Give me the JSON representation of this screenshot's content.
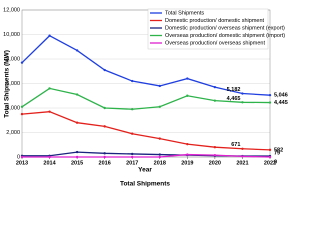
{
  "chart_data": {
    "type": "line",
    "xlabel": "Year",
    "ylabel": "Total Shipments (MW)",
    "title": "Total Shipments",
    "x": [
      2013,
      2014,
      2015,
      2016,
      2017,
      2018,
      2019,
      2020,
      2021,
      2022
    ],
    "xlim": [
      2013,
      2022
    ],
    "xticks": [
      2013,
      2014,
      2015,
      2016,
      2017,
      2018,
      2019,
      2020,
      2021,
      2022
    ],
    "ylim": [
      0,
      12000
    ],
    "yticks": [
      0,
      {
        "value": 2000,
        "label": "2,000"
      },
      {
        "value": 4000,
        "label": "4,000"
      },
      {
        "value": 6000,
        "label": "6,000"
      },
      {
        "value": 8000,
        "label": "8,000"
      },
      {
        "value": 10000,
        "label": "10,000"
      },
      {
        "value": 12000,
        "label": "12,000"
      }
    ],
    "grid": true,
    "legend": "upper right",
    "series": [
      {
        "name": "Total Shipments",
        "color": "#1f3fe0",
        "values": [
          7700,
          9900,
          8700,
          7100,
          6200,
          5800,
          6400,
          5700,
          5182,
          5046
        ],
        "value_labels": [
          null,
          null,
          null,
          null,
          null,
          null,
          null,
          null,
          "5,182",
          "5,046"
        ]
      },
      {
        "name": "Domestic production/ domestic shipment",
        "color": "#e3201b",
        "values": [
          3500,
          3700,
          2800,
          2500,
          1900,
          1500,
          1050,
          800,
          671,
          582
        ],
        "value_labels": [
          null,
          null,
          null,
          null,
          null,
          null,
          null,
          null,
          "671",
          "582"
        ]
      },
      {
        "name": "Domestic production/ overseas shipment (export)",
        "color": "#1a237e",
        "values": [
          100,
          100,
          400,
          300,
          250,
          200,
          150,
          100,
          80,
          79
        ],
        "value_labels": [
          null,
          null,
          null,
          null,
          null,
          null,
          null,
          null,
          null,
          "79"
        ]
      },
      {
        "name": "Overseas production/ domestic shipment (import)",
        "color": "#2db34a",
        "values": [
          4100,
          5600,
          5100,
          4000,
          3900,
          4100,
          5000,
          4600,
          4465,
          4445
        ],
        "value_labels": [
          null,
          null,
          null,
          null,
          null,
          null,
          null,
          null,
          "4,465",
          "4,445"
        ]
      },
      {
        "name": "Overseas production/ overseas shipment",
        "color": "#e020d0",
        "values": [
          0,
          0,
          0,
          0,
          0,
          0,
          200,
          150,
          50,
          0
        ],
        "value_labels": [
          null,
          null,
          null,
          null,
          null,
          null,
          null,
          null,
          null,
          "0"
        ]
      }
    ]
  }
}
